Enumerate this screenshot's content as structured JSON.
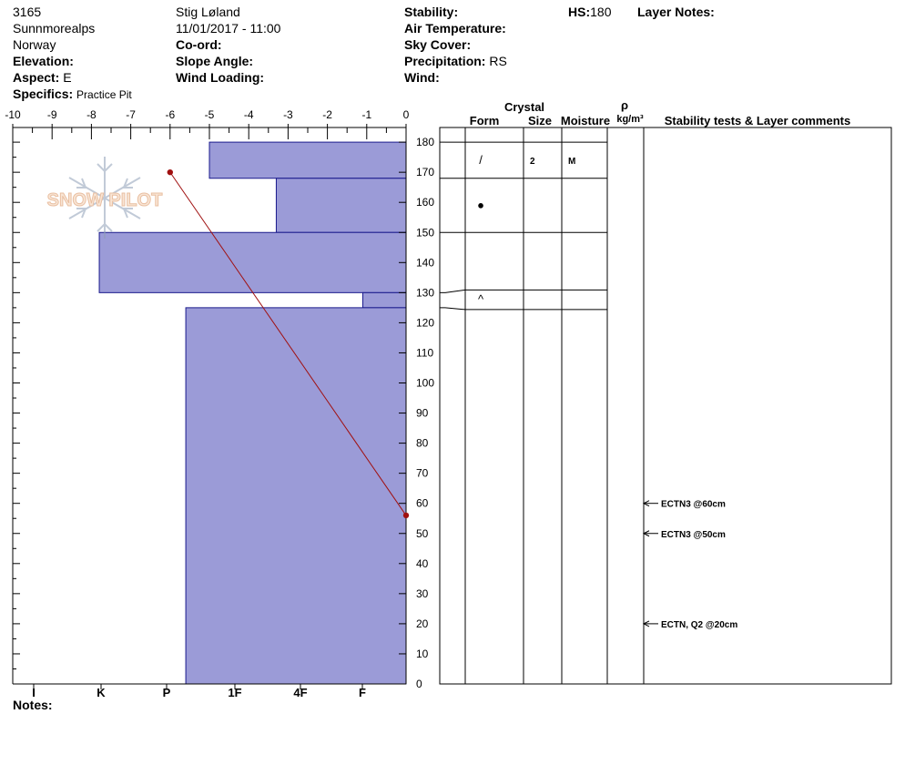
{
  "header": {
    "pit_id": "3165",
    "range": "Sunnmorealps",
    "country": "Norway",
    "elevation_label": "Elevation:",
    "elevation_value": "",
    "aspect_label": "Aspect:",
    "aspect_value": "E",
    "specifics_label": "Specifics:",
    "specifics_value": "Practice Pit",
    "observer": "Stig Løland",
    "datetime": "11/01/2017 - 11:00",
    "coord_label": "Co-ord:",
    "slope_label": "Slope Angle:",
    "wind_loading_label": "Wind Loading:",
    "stability_label": "Stability:",
    "air_temp_label": "Air Temperature:",
    "sky_cover_label": "Sky Cover:",
    "precip_label": "Precipitation:",
    "precip_value": "RS",
    "wind_label": "Wind:",
    "hs_label": "HS:",
    "hs_value": "180",
    "layer_notes_label": "Layer Notes:"
  },
  "logo_text": "SNOW PILOT",
  "notes_label": "Notes:",
  "table_headers": {
    "crystal": "Crystal",
    "form": "Form",
    "size": "Size",
    "moisture": "Moisture",
    "rho": "ρ",
    "density_unit": "kg/m³",
    "comments": "Stability tests & Layer comments"
  },
  "chart_data": {
    "type": "snow-profile",
    "temp_axis": {
      "ticks": [
        -10,
        -9,
        -8,
        -7,
        -6,
        -5,
        -4,
        -3,
        -2,
        -1,
        0
      ],
      "range": [
        -10,
        0
      ]
    },
    "height_axis": {
      "ticks": [
        0,
        10,
        20,
        30,
        40,
        50,
        60,
        70,
        80,
        90,
        100,
        110,
        120,
        130,
        140,
        150,
        160,
        170,
        180
      ],
      "range": [
        0,
        185
      ]
    },
    "hardness_axis": {
      "labels": [
        "I",
        "K",
        "P",
        "1F",
        "4F",
        "F"
      ]
    },
    "layers": [
      {
        "top": 180,
        "bottom": 168,
        "hardness_temp_equiv": -5.0,
        "form": "/",
        "size": "2",
        "moisture": "M"
      },
      {
        "top": 168,
        "bottom": 150,
        "hardness_temp_equiv": -3.3,
        "form": "●",
        "size": "",
        "moisture": ""
      },
      {
        "top": 150,
        "bottom": 130,
        "hardness_temp_equiv": -7.8,
        "form": "",
        "size": "",
        "moisture": ""
      },
      {
        "top": 130,
        "bottom": 125,
        "hardness_temp_equiv": -1.1,
        "form": "^",
        "size": "",
        "moisture": ""
      },
      {
        "top": 125,
        "bottom": 0,
        "hardness_temp_equiv": -5.6,
        "form": "",
        "size": "",
        "moisture": ""
      }
    ],
    "temperature_profile": [
      {
        "temp": -6.0,
        "height": 170
      },
      {
        "temp": 0.0,
        "height": 56
      }
    ],
    "tests": [
      {
        "height": 60,
        "label": "ECTN3 @60cm"
      },
      {
        "height": 50,
        "label": "ECTN3 @50cm"
      },
      {
        "height": 20,
        "label": "ECTN, Q2 @20cm"
      }
    ],
    "colors": {
      "layer_fill": "#9b9bd7",
      "layer_stroke": "#1a1a8c",
      "temp_line": "#a01010"
    }
  }
}
